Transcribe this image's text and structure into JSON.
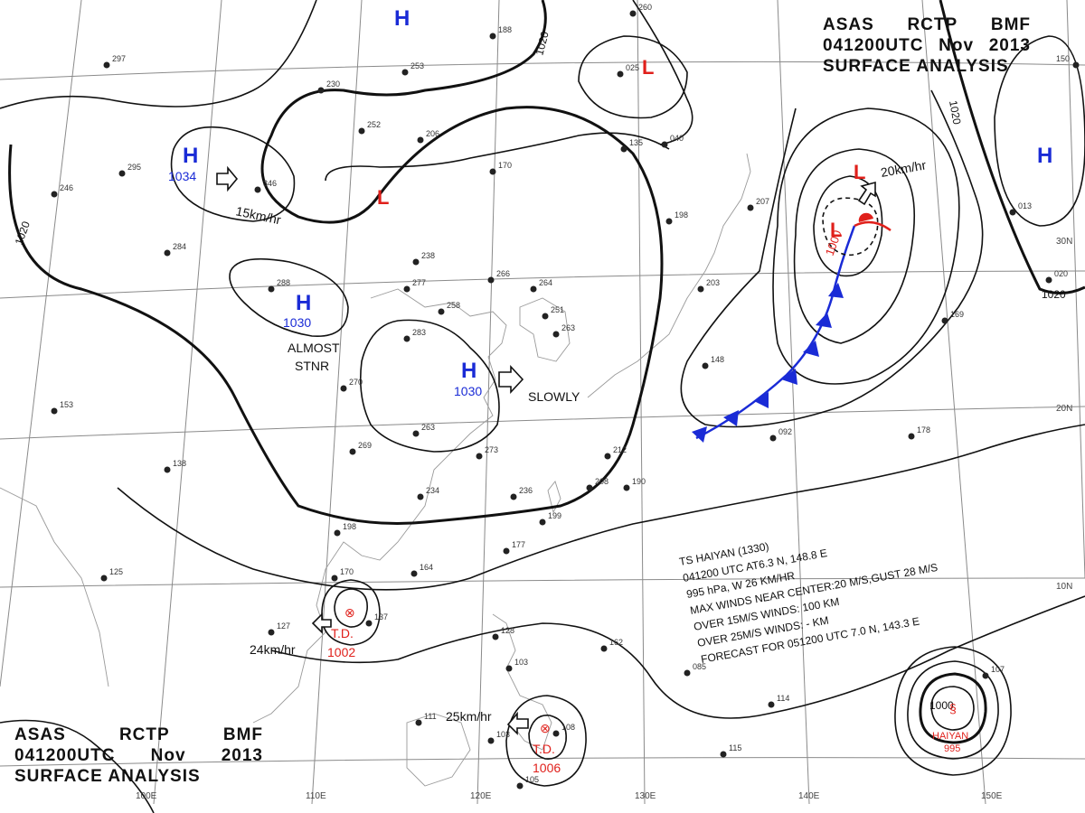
{
  "header": {
    "agency": [
      "ASAS",
      "RCTP",
      "BMF"
    ],
    "time": [
      "041200UTC",
      "Nov",
      "2013"
    ],
    "product": "SURFACE ANALYSIS"
  },
  "footer": {
    "agency": [
      "ASAS",
      "RCTP",
      "BMF"
    ],
    "time": [
      "041200UTC",
      "Nov",
      "2013"
    ],
    "product": "SURFACE ANALYSIS"
  },
  "colors": {
    "high": "#1a2bd6",
    "low": "#e0201b",
    "cold_front": "#1a2bd6",
    "isobar": "#111111",
    "grid": "#8a8a8a"
  },
  "isobar_labels": [
    "1020",
    "1020",
    "1020",
    "1020",
    "1000"
  ],
  "lat_labels": [
    "30N",
    "20N",
    "10N"
  ],
  "lon_labels": [
    "100E",
    "110E",
    "120E",
    "130E",
    "140E",
    "150E"
  ],
  "highs": [
    {
      "symbol": "H",
      "pressure": "1034"
    },
    {
      "symbol": "H",
      "pressure": "1030"
    },
    {
      "symbol": "H",
      "pressure": "1030"
    },
    {
      "symbol": "H",
      "pressure": ""
    },
    {
      "symbol": "H",
      "pressure": ""
    }
  ],
  "lows": [
    {
      "symbol": "L",
      "pressure": "1000"
    },
    {
      "symbol": "L",
      "pressure": ""
    },
    {
      "symbol": "L",
      "pressure": ""
    },
    {
      "symbol": "L",
      "pressure": ""
    }
  ],
  "motions": [
    "15km/hr",
    "20km/hr",
    "ALMOST",
    "STNR",
    "SLOWLY",
    "24km/hr",
    "25km/hr"
  ],
  "tropical_depressions": [
    {
      "label": "T.D.",
      "pressure": "1002"
    },
    {
      "label": "T.D.",
      "pressure": "1006"
    }
  ],
  "typhoon": {
    "name": "HAIYAN",
    "pressure": "995",
    "isobar": "1000"
  },
  "ts_bulletin": [
    "TS  HAIYAN  (1330)",
    "041200  UTC   AT6.3 N, 148.8 E",
    "995  hPa, W   26 KM/HR",
    "MAX WINDS NEAR CENTER:20 M/S,GUST 28 M/S",
    "OVER 15M/S WINDS: 100 KM",
    "OVER 25M/S WINDS: - KM",
    "FORECAST FOR 051200 UTC 7.0 N, 143.3 E"
  ],
  "station_values": [
    "297",
    "230",
    "253",
    "252",
    "246",
    "295",
    "346",
    "284",
    "288",
    "277",
    "238",
    "258",
    "266",
    "264",
    "251",
    "263",
    "283",
    "270",
    "263",
    "273",
    "269",
    "234",
    "236",
    "208",
    "212",
    "190",
    "199",
    "177",
    "164",
    "198",
    "170",
    "137",
    "127",
    "125",
    "153",
    "138",
    "206",
    "170",
    "135",
    "198",
    "203",
    "207",
    "178",
    "092",
    "169",
    "148",
    "162",
    "128",
    "103",
    "111",
    "103",
    "108",
    "105",
    "085",
    "114",
    "115",
    "107",
    "188",
    "260",
    "025",
    "040",
    "150",
    "013",
    "020"
  ]
}
